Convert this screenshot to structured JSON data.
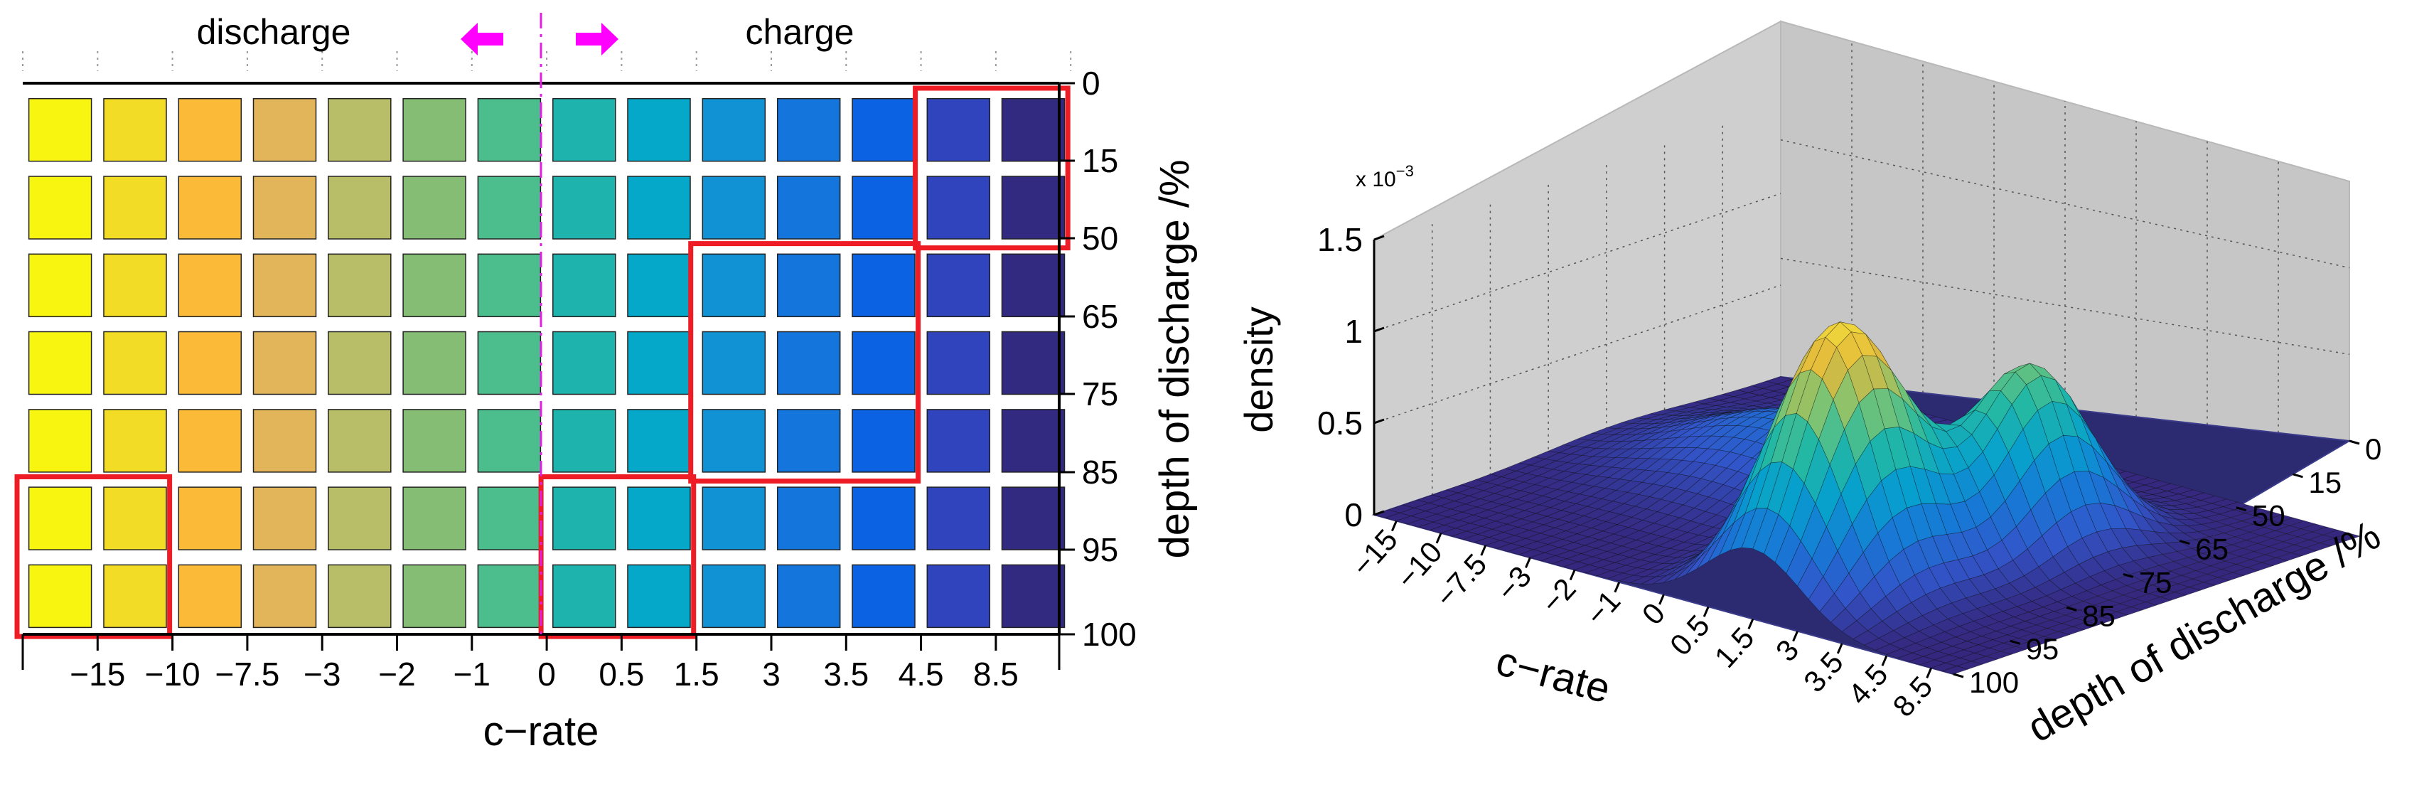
{
  "chart_data": [
    {
      "type": "heatmap",
      "title": "",
      "xlabel": "c−rate",
      "ylabel": "depth of discharge /%",
      "x_ticks": [
        "−15",
        "−10",
        "−7.5",
        "−3",
        "−2",
        "−1",
        "0",
        "0.5",
        "1.5",
        "3",
        "3.5",
        "4.5",
        "8.5"
      ],
      "y_ticks": [
        "0",
        "15",
        "50",
        "65",
        "75",
        "85",
        "95",
        "100"
      ],
      "annotations": {
        "discharge": "discharge",
        "charge": "charge"
      },
      "columns": 14,
      "rows": 7,
      "column_colors": [
        "#f8f610",
        "#f2dc25",
        "#fbbb38",
        "#e2b55a",
        "#b8bd68",
        "#86bd74",
        "#4cbd8d",
        "#1fb3ad",
        "#05a8c8",
        "#1092d4",
        "#1475dd",
        "#0b63e3",
        "#3044be",
        "#312a80"
      ],
      "highlight_regions": [
        {
          "col_start": 12,
          "col_end": 13,
          "row_start": 0,
          "row_end": 1
        },
        {
          "col_start": 9,
          "col_end": 11,
          "row_start": 2,
          "row_end": 4
        },
        {
          "col_start": 7,
          "col_end": 8,
          "row_start": 5,
          "row_end": 6
        },
        {
          "col_start": 0,
          "col_end": 1,
          "row_start": 5,
          "row_end": 6
        }
      ],
      "highlight_color": "#ee1c24",
      "divider_color": "#e020e0",
      "arrow_color": "#ff00ff"
    },
    {
      "type": "surface",
      "title": "",
      "zlabel": "density",
      "zscale_label": "x 10",
      "zscale_exp": "−3",
      "z_ticks": [
        "0",
        "0.5",
        "1",
        "1.5"
      ],
      "zlim": [
        0,
        1.5
      ],
      "xlabel": "c−rate",
      "x_ticks": [
        "−15",
        "−10",
        "−7.5",
        "−3",
        "−2",
        "−1",
        "0",
        "0.5",
        "1.5",
        "3",
        "3.5",
        "4.5",
        "8.5"
      ],
      "ylabel": "depth of discharge /%",
      "y_ticks": [
        "0",
        "15",
        "50",
        "65",
        "75",
        "85",
        "95",
        "100"
      ],
      "peaks": [
        {
          "c_rate_index": 8.5,
          "dod_index": 1.5,
          "density": 1.45
        },
        {
          "c_rate_index": 9.5,
          "dod_index": 4.0,
          "density": 1.0
        },
        {
          "c_rate_index": 4.0,
          "dod_index": 4.2,
          "density": 0.35
        }
      ],
      "colormap": [
        "#35277d",
        "#3255c9",
        "#1779d6",
        "#07a0cd",
        "#22b8a4",
        "#7cc473",
        "#e3b93c",
        "#f5e43a"
      ]
    }
  ]
}
